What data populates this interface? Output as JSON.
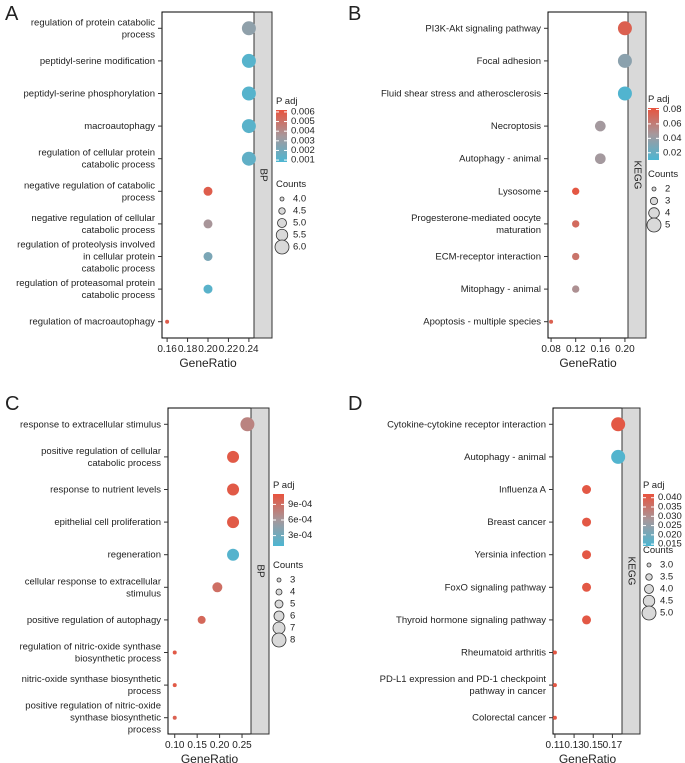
{
  "colors": {
    "low": "#4cb6d2",
    "mid": "#a6989c",
    "high": "#e8533e",
    "strip": "#d9d9d9",
    "frame": "#000000"
  },
  "chart_data": [
    {
      "type": "scatter",
      "panel_label": "A",
      "strip": "BP",
      "xlabel": "GeneRatio",
      "xlim": [
        0.155,
        0.245
      ],
      "xticks": [
        "0.16",
        "0.18",
        "0.20",
        "0.22",
        "0.24"
      ],
      "xtick_values": [
        0.16,
        0.18,
        0.2,
        0.22,
        0.24
      ],
      "color_title": "P adj",
      "color_ticks": [
        "0.006",
        "0.005",
        "0.004",
        "0.003",
        "0.002",
        "0.001"
      ],
      "color_tick_values": [
        0.006,
        0.005,
        0.004,
        0.003,
        0.002,
        0.001
      ],
      "clim": [
        0.0008,
        0.0062
      ],
      "size_title": "Counts",
      "size_ticks": [
        "4.0",
        "4.5",
        "5.0",
        "5.5",
        "6.0"
      ],
      "size_tick_values": [
        4.0,
        4.5,
        5.0,
        5.5,
        6.0
      ],
      "slim": [
        4,
        6
      ],
      "points": [
        {
          "label": [
            "regulation of protein catabolic",
            "process"
          ],
          "x": 0.24,
          "count": 6,
          "padj": 0.0028
        },
        {
          "label": [
            "peptidyl-serine modification"
          ],
          "x": 0.24,
          "count": 6,
          "padj": 0.0011
        },
        {
          "label": [
            "peptidyl-serine phosphorylation"
          ],
          "x": 0.24,
          "count": 6,
          "padj": 0.0011
        },
        {
          "label": [
            "macroautophagy"
          ],
          "x": 0.24,
          "count": 6,
          "padj": 0.0012
        },
        {
          "label": [
            "regulation of cellular protein",
            "catabolic process"
          ],
          "x": 0.24,
          "count": 6,
          "padj": 0.0014
        },
        {
          "label": [
            "negative regulation of catabolic",
            "process"
          ],
          "x": 0.2,
          "count": 5,
          "padj": 0.0058
        },
        {
          "label": [
            "negative regulation of cellular",
            "catabolic process"
          ],
          "x": 0.2,
          "count": 5,
          "padj": 0.0036
        },
        {
          "label": [
            "regulation of proteolysis involved",
            "in cellular protein",
            "catabolic process"
          ],
          "x": 0.2,
          "count": 5,
          "padj": 0.0022
        },
        {
          "label": [
            "regulation of proteasomal protein",
            "catabolic process"
          ],
          "x": 0.2,
          "count": 5,
          "padj": 0.0012
        },
        {
          "label": [
            "regulation of macroautophagy"
          ],
          "x": 0.16,
          "count": 4,
          "padj": 0.0058
        }
      ]
    },
    {
      "type": "scatter",
      "panel_label": "B",
      "strip": "KEGG",
      "xlabel": "GeneRatio",
      "xlim": [
        0.075,
        0.205
      ],
      "xticks": [
        "0.08",
        "0.12",
        "0.16",
        "0.20"
      ],
      "xtick_values": [
        0.08,
        0.12,
        0.16,
        0.2
      ],
      "color_title": "P adj",
      "color_ticks": [
        "0.08",
        "0.06",
        "0.04",
        "0.02"
      ],
      "color_tick_values": [
        0.08,
        0.06,
        0.04,
        0.02
      ],
      "clim": [
        0.01,
        0.082
      ],
      "size_title": "Counts",
      "size_ticks": [
        "2",
        "3",
        "4",
        "5"
      ],
      "size_tick_values": [
        2,
        3,
        4,
        5
      ],
      "slim": [
        2,
        5
      ],
      "points": [
        {
          "label": [
            "PI3K-Akt signaling pathway"
          ],
          "x": 0.2,
          "count": 5,
          "padj": 0.075
        },
        {
          "label": [
            "Focal adhesion"
          ],
          "x": 0.2,
          "count": 5,
          "padj": 0.035
        },
        {
          "label": [
            "Fluid shear stress and atherosclerosis"
          ],
          "x": 0.2,
          "count": 5,
          "padj": 0.012
        },
        {
          "label": [
            "Necroptosis"
          ],
          "x": 0.16,
          "count": 4,
          "padj": 0.045
        },
        {
          "label": [
            "Autophagy - animal"
          ],
          "x": 0.16,
          "count": 4,
          "padj": 0.045
        },
        {
          "label": [
            "Lysosome"
          ],
          "x": 0.12,
          "count": 3,
          "padj": 0.08
        },
        {
          "label": [
            "Progesterone-mediated oocyte",
            "maturation"
          ],
          "x": 0.12,
          "count": 3,
          "padj": 0.07
        },
        {
          "label": [
            "ECM-receptor interaction"
          ],
          "x": 0.12,
          "count": 3,
          "padj": 0.065
        },
        {
          "label": [
            "Mitophagy - animal"
          ],
          "x": 0.12,
          "count": 3,
          "padj": 0.05
        },
        {
          "label": [
            "Apoptosis - multiple species"
          ],
          "x": 0.08,
          "count": 2,
          "padj": 0.075
        }
      ]
    },
    {
      "type": "scatter",
      "panel_label": "C",
      "strip": "BP",
      "xlabel": "GeneRatio",
      "xlim": [
        0.085,
        0.27
      ],
      "xticks": [
        "0.10",
        "0.15",
        "0.20",
        "0.25"
      ],
      "xtick_values": [
        0.1,
        0.15,
        0.2,
        0.25
      ],
      "color_title": "P adj",
      "color_ticks": [
        "9e-04",
        "6e-04",
        "3e-04"
      ],
      "color_tick_values": [
        0.0009,
        0.0006,
        0.0003
      ],
      "clim": [
        0.0001,
        0.0011
      ],
      "size_title": "Counts",
      "size_ticks": [
        "3",
        "4",
        "5",
        "6",
        "7",
        "8"
      ],
      "size_tick_values": [
        3,
        4,
        5,
        6,
        7,
        8
      ],
      "slim": [
        3,
        8
      ],
      "points": [
        {
          "label": [
            "response to extracellular stimulus"
          ],
          "x": 0.262,
          "count": 8,
          "padj": 0.00075
        },
        {
          "label": [
            "positive regulation of cellular",
            "catabolic process"
          ],
          "x": 0.23,
          "count": 7,
          "padj": 0.00105
        },
        {
          "label": [
            "response to nutrient levels"
          ],
          "x": 0.23,
          "count": 7,
          "padj": 0.00105
        },
        {
          "label": [
            "epithelial cell proliferation"
          ],
          "x": 0.23,
          "count": 7,
          "padj": 0.00105
        },
        {
          "label": [
            "regeneration"
          ],
          "x": 0.23,
          "count": 7,
          "padj": 0.00015
        },
        {
          "label": [
            "cellular response to extracellular",
            "stimulus"
          ],
          "x": 0.195,
          "count": 6,
          "padj": 0.0009
        },
        {
          "label": [
            "positive regulation of autophagy"
          ],
          "x": 0.16,
          "count": 5,
          "padj": 0.00095
        },
        {
          "label": [
            "regulation of nitric-oxide synthase",
            "biosynthetic process"
          ],
          "x": 0.1,
          "count": 3,
          "padj": 0.00105
        },
        {
          "label": [
            "nitric-oxide synthase biosynthetic",
            "process"
          ],
          "x": 0.1,
          "count": 3,
          "padj": 0.00105
        },
        {
          "label": [
            "positive regulation of nitric-oxide",
            "synthase biosynthetic",
            "process"
          ],
          "x": 0.1,
          "count": 3,
          "padj": 0.001
        }
      ]
    },
    {
      "type": "scatter",
      "panel_label": "D",
      "strip": "KEGG",
      "xlabel": "GeneRatio",
      "xlim": [
        0.108,
        0.18
      ],
      "xticks": [
        "0.11",
        "0.13",
        "0.15",
        "0.17"
      ],
      "xtick_values": [
        0.11,
        0.13,
        0.15,
        0.17
      ],
      "color_title": "P adj",
      "color_ticks": [
        "0.040",
        "0.035",
        "0.030",
        "0.025",
        "0.020",
        "0.015"
      ],
      "color_tick_values": [
        0.04,
        0.035,
        0.03,
        0.025,
        0.02,
        0.015
      ],
      "clim": [
        0.014,
        0.042
      ],
      "size_title": "Counts",
      "size_ticks": [
        "3.0",
        "3.5",
        "4.0",
        "4.5",
        "5.0"
      ],
      "size_tick_values": [
        3.0,
        3.5,
        4.0,
        4.5,
        5.0
      ],
      "slim": [
        3,
        5
      ],
      "points": [
        {
          "label": [
            "Cytokine-cytokine receptor interaction"
          ],
          "x": 0.176,
          "count": 5,
          "padj": 0.041
        },
        {
          "label": [
            "Autophagy - animal"
          ],
          "x": 0.176,
          "count": 5,
          "padj": 0.015
        },
        {
          "label": [
            "Influenza A"
          ],
          "x": 0.143,
          "count": 4,
          "padj": 0.041
        },
        {
          "label": [
            "Breast cancer"
          ],
          "x": 0.143,
          "count": 4,
          "padj": 0.041
        },
        {
          "label": [
            "Yersinia infection"
          ],
          "x": 0.143,
          "count": 4,
          "padj": 0.041
        },
        {
          "label": [
            "FoxO signaling pathway"
          ],
          "x": 0.143,
          "count": 4,
          "padj": 0.041
        },
        {
          "label": [
            "Thyroid hormone signaling pathway"
          ],
          "x": 0.143,
          "count": 4,
          "padj": 0.041
        },
        {
          "label": [
            "Rheumatoid arthritis"
          ],
          "x": 0.11,
          "count": 3,
          "padj": 0.041
        },
        {
          "label": [
            "PD-L1 expression and PD-1 checkpoint",
            "pathway in cancer"
          ],
          "x": 0.11,
          "count": 3,
          "padj": 0.041
        },
        {
          "label": [
            "Colorectal cancer"
          ],
          "x": 0.11,
          "count": 3,
          "padj": 0.041
        }
      ]
    }
  ]
}
